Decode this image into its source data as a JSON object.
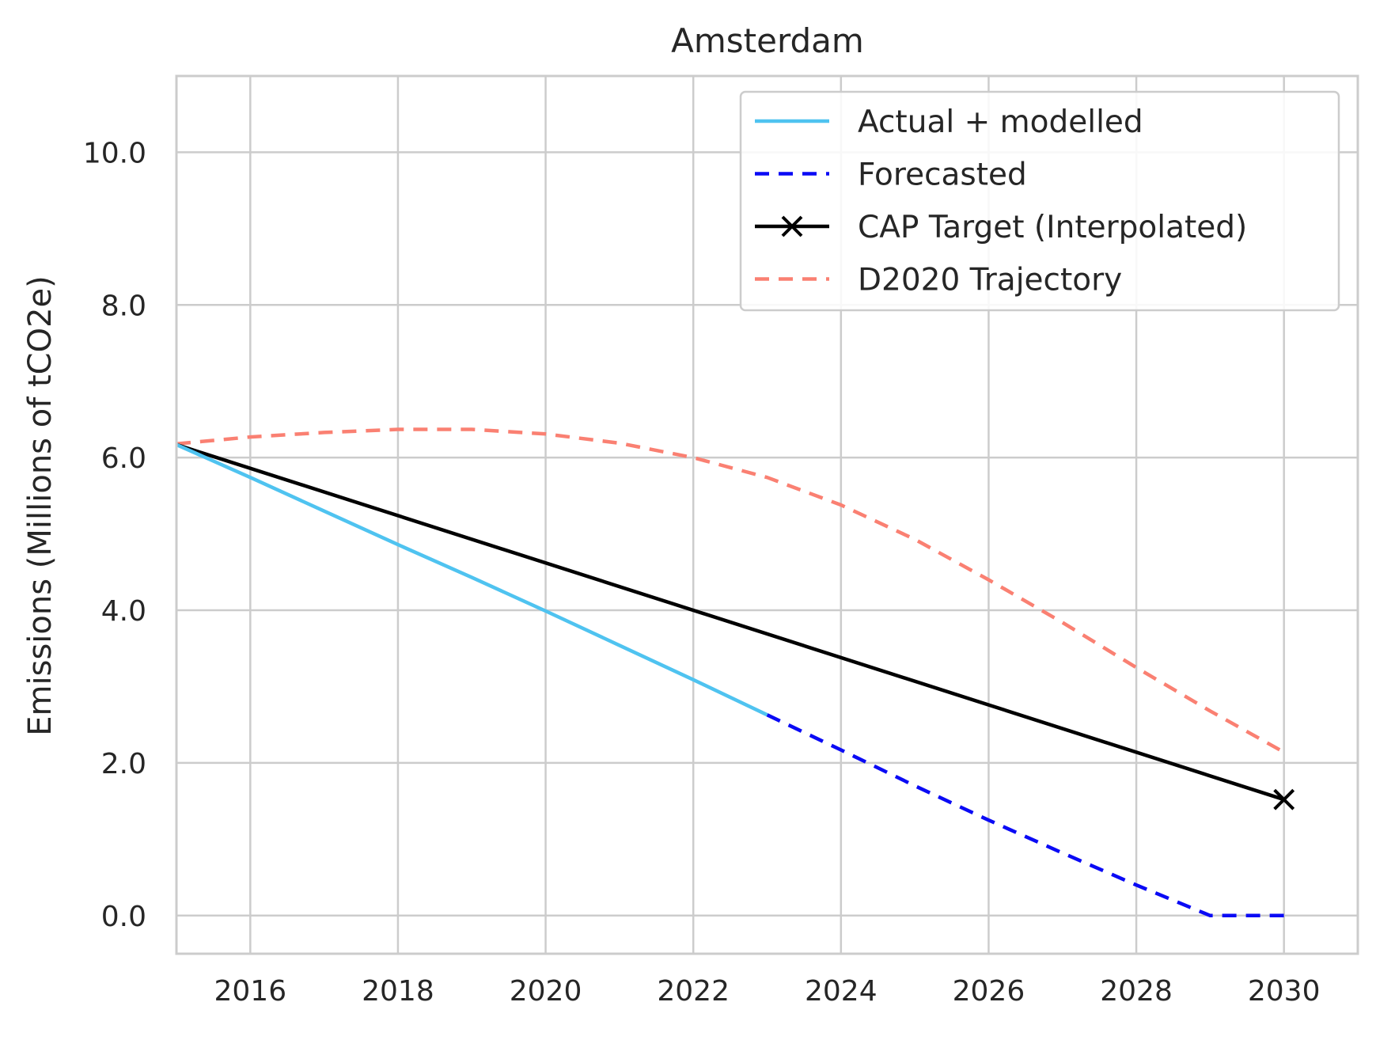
{
  "chart_data": {
    "type": "line",
    "title": "Amsterdam",
    "xlabel": "",
    "ylabel": "Emissions (Millions of tCO2e)",
    "xlim": [
      2015,
      2031
    ],
    "ylim": [
      -0.5,
      11.0
    ],
    "x_ticks": [
      2016,
      2018,
      2020,
      2022,
      2024,
      2026,
      2028,
      2030
    ],
    "x_tick_labels": [
      "2016",
      "2018",
      "2020",
      "2022",
      "2024",
      "2026",
      "2028",
      "2030"
    ],
    "y_ticks": [
      0,
      2,
      4,
      6,
      8,
      10
    ],
    "y_tick_labels": [
      "0.0",
      "2.0",
      "4.0",
      "6.0",
      "8.0",
      "10.0"
    ],
    "grid": true,
    "legend_position": "top-right",
    "series": [
      {
        "name": "Actual + modelled",
        "color": "#4fc3f0",
        "style": "solid",
        "marker": "none",
        "x": [
          2015,
          2016,
          2017,
          2018,
          2019,
          2020,
          2021,
          2022,
          2023
        ],
        "y": [
          6.17,
          5.74,
          5.3,
          4.86,
          4.43,
          3.99,
          3.54,
          3.09,
          2.63
        ]
      },
      {
        "name": "Forecasted",
        "color": "#0a0af5",
        "style": "dashed",
        "marker": "none",
        "x": [
          2023,
          2024,
          2025,
          2026,
          2027,
          2028,
          2029,
          2030
        ],
        "y": [
          2.63,
          2.17,
          1.7,
          1.25,
          0.82,
          0.4,
          0.0,
          0.0
        ]
      },
      {
        "name": "CAP Target (Interpolated)",
        "color": "#000000",
        "style": "solid",
        "marker": "x",
        "marker_at": [
          2030
        ],
        "x": [
          2015,
          2030
        ],
        "y": [
          6.17,
          1.52
        ]
      },
      {
        "name": "D2020 Trajectory",
        "color": "#fa8072",
        "style": "dashed",
        "marker": "none",
        "x": [
          2015,
          2016,
          2017,
          2018,
          2019,
          2020,
          2021,
          2022,
          2023,
          2024,
          2025,
          2026,
          2027,
          2028,
          2029,
          2030
        ],
        "y": [
          6.18,
          6.27,
          6.33,
          6.37,
          6.37,
          6.31,
          6.19,
          6.0,
          5.74,
          5.38,
          4.93,
          4.4,
          3.84,
          3.25,
          2.68,
          2.14
        ]
      }
    ]
  }
}
